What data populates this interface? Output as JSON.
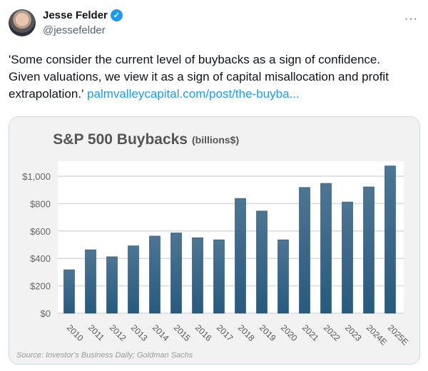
{
  "author": {
    "name": "Jesse Felder",
    "handle": "@jessefelder",
    "verified_icon": "verified-badge-icon"
  },
  "more_icon": "more-horizontal-icon",
  "tweet": {
    "text": "'Some consider the current level of buybacks as a sign of confidence. Given valuations, we view it as a sign of capital misallocation and profit extrapolation.' ",
    "link": "palmvalleycapital.com/post/the-buyba..."
  },
  "colors": {
    "bar": "#2e5f82",
    "link": "#1d9bf0"
  },
  "chart_data": {
    "type": "bar",
    "title": "S&P 500 Buybacks",
    "subtitle": "(billions$)",
    "categories": [
      "2010",
      "2011",
      "2012",
      "2013",
      "2014",
      "2015",
      "2016",
      "2017",
      "2018",
      "2019",
      "2020",
      "2021",
      "2022",
      "2023",
      "2024E",
      "2025E"
    ],
    "values": [
      317,
      463,
      412,
      492,
      563,
      586,
      551,
      536,
      838,
      746,
      536,
      918,
      948,
      812,
      922,
      1075
    ],
    "ylim": [
      0,
      1100
    ],
    "yticks": [
      0,
      200,
      400,
      600,
      800,
      1000
    ],
    "ytick_labels": [
      "$0",
      "$200",
      "$400",
      "$600",
      "$800",
      "$1,000"
    ],
    "grid": true,
    "source": "Source: Investor's Business Daily; Goldman Sachs"
  }
}
